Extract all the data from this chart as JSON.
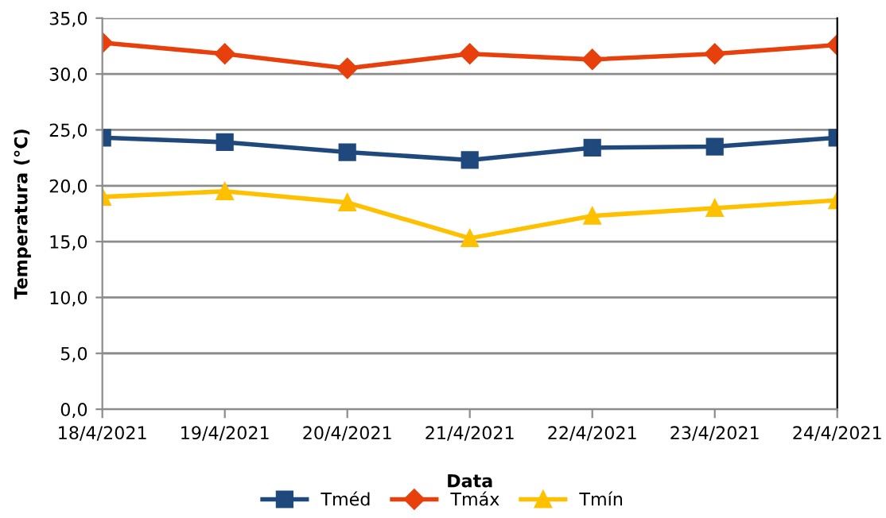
{
  "chart_data": {
    "type": "line",
    "xlabel": "Data",
    "ylabel": "Temperatura (°C)",
    "categories": [
      "18/4/2021",
      "19/4/2021",
      "20/4/2021",
      "21/4/2021",
      "22/4/2021",
      "23/4/2021",
      "24/4/2021"
    ],
    "series": [
      {
        "name": "Tméd",
        "color": "#1f497d",
        "marker": "square",
        "values": [
          24.3,
          23.9,
          23.0,
          22.3,
          23.4,
          23.5,
          24.3
        ]
      },
      {
        "name": "Tmáx",
        "color": "#e8400c",
        "marker": "diamond",
        "values": [
          32.8,
          31.8,
          30.5,
          31.8,
          31.3,
          31.8,
          32.6
        ]
      },
      {
        "name": "Tmín",
        "color": "#ffc000",
        "marker": "triangle",
        "values": [
          19.0,
          19.5,
          18.5,
          15.3,
          17.3,
          18.0,
          18.7
        ]
      }
    ],
    "ylim": [
      0,
      35
    ],
    "yticks": [
      {
        "value": 0,
        "label": "0,0"
      },
      {
        "value": 5,
        "label": "5,0"
      },
      {
        "value": 10,
        "label": "10,0"
      },
      {
        "value": 15,
        "label": "15,0"
      },
      {
        "value": 20,
        "label": "20,0"
      },
      {
        "value": 25,
        "label": "25,0"
      },
      {
        "value": 30,
        "label": "30,0"
      },
      {
        "value": 35,
        "label": "35,0"
      }
    ],
    "grid": "y",
    "legend": "bottom",
    "line_style": "solid"
  }
}
